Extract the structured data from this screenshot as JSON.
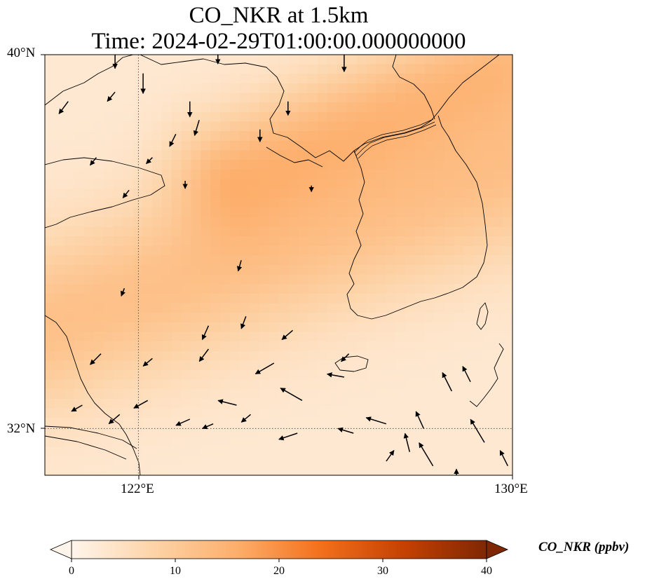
{
  "title": "CO_NKR at 1.5km",
  "subtitle": "Time: 2024-02-29T01:00:00.000000000",
  "lat_ticks": [
    "40°N",
    "32°N"
  ],
  "lon_ticks": [
    "122°E",
    "130°E"
  ],
  "colorbar": {
    "label": "CO_NKR (ppbv)",
    "ticks": [
      "0",
      "10",
      "20",
      "30",
      "40"
    ],
    "colors": [
      "#fff5eb",
      "#fdd3a7",
      "#fdae6b",
      "#f3701b",
      "#c54102",
      "#7f2704"
    ]
  },
  "chart_data": {
    "type": "heatmap",
    "title": "CO_NKR at 1.5km",
    "variable": "CO_NKR",
    "units": "ppbv",
    "lon_range": [
      120,
      130
    ],
    "lat_range": [
      31,
      40
    ],
    "color_range": [
      0,
      40
    ],
    "gridlines": {
      "lon": [
        122
      ],
      "lat": [
        32
      ]
    },
    "value_field": {
      "background": 3,
      "bands": [
        {
          "name": "central-plume",
          "lon0": 120,
          "lat0": 34.2,
          "lon1": 130,
          "lat1": 37.6,
          "width": 1.3,
          "peak": 9
        },
        {
          "name": "northeast-plume",
          "lon0": 124,
          "lat0": 37.5,
          "lon1": 130,
          "lat1": 40.0,
          "width": 0.9,
          "peak": 9
        }
      ]
    }
  },
  "wind_vectors": [
    [
      121.5,
      40.1,
      0,
      -1.2
    ],
    [
      122.1,
      39.6,
      0,
      -1.3
    ],
    [
      123.7,
      40.2,
      0,
      -1.2
    ],
    [
      126.4,
      40.0,
      0,
      -1.1
    ],
    [
      120.5,
      39.0,
      -0.6,
      -0.8
    ],
    [
      121.5,
      39.2,
      -0.5,
      -0.6
    ],
    [
      123.1,
      39.0,
      0,
      -1.0
    ],
    [
      125.2,
      39.0,
      0,
      -0.9
    ],
    [
      124.6,
      38.4,
      0,
      -0.8
    ],
    [
      123.3,
      38.6,
      -0.3,
      -1.0
    ],
    [
      122.8,
      38.3,
      -0.4,
      -0.8
    ],
    [
      121.1,
      37.8,
      -0.4,
      -0.5
    ],
    [
      122.3,
      37.8,
      -0.4,
      -0.4
    ],
    [
      121.8,
      37.1,
      -0.4,
      -0.5
    ],
    [
      123.0,
      37.3,
      0,
      -0.5
    ],
    [
      125.7,
      37.2,
      0,
      -0.4
    ],
    [
      124.2,
      35.6,
      -0.2,
      -0.7
    ],
    [
      121.7,
      35.0,
      -0.2,
      -0.5
    ],
    [
      123.5,
      34.2,
      -0.4,
      -0.9
    ],
    [
      124.3,
      34.4,
      -0.3,
      -0.8
    ],
    [
      125.3,
      34.1,
      -0.7,
      -0.6
    ],
    [
      126.5,
      33.6,
      -0.5,
      -0.5
    ],
    [
      124.9,
      33.4,
      -1.2,
      -0.7
    ],
    [
      123.5,
      33.7,
      -0.6,
      -0.8
    ],
    [
      122.3,
      33.5,
      -0.6,
      -0.5
    ],
    [
      121.2,
      33.6,
      -0.7,
      -0.7
    ],
    [
      120.8,
      32.5,
      -0.7,
      -0.4
    ],
    [
      121.6,
      32.3,
      -0.7,
      -0.6
    ],
    [
      122.2,
      32.6,
      -0.9,
      -0.5
    ],
    [
      123.1,
      32.2,
      -0.9,
      -0.4
    ],
    [
      124.4,
      32.3,
      -0.6,
      -0.5
    ],
    [
      125.4,
      31.9,
      -1.2,
      -0.4
    ],
    [
      123.6,
      32.1,
      -0.7,
      -0.3
    ],
    [
      127.3,
      32.1,
      -1.3,
      0.4
    ],
    [
      127.3,
      31.3,
      0.5,
      0.7
    ],
    [
      128.3,
      31.2,
      -0.9,
      1.5
    ],
    [
      128.1,
      32.0,
      -0.5,
      1.1
    ],
    [
      129.4,
      31.7,
      -0.9,
      1.5
    ],
    [
      126.6,
      31.9,
      -1.0,
      0.3
    ],
    [
      125.5,
      32.6,
      -1.4,
      0.8
    ],
    [
      124.1,
      32.5,
      -1.2,
      0.3
    ],
    [
      127.8,
      31.5,
      -0.3,
      1.2
    ],
    [
      128.7,
      32.8,
      -0.6,
      1.2
    ],
    [
      129.1,
      33.0,
      -0.5,
      1.0
    ],
    [
      126.4,
      33.1,
      -1.1,
      0.2
    ],
    [
      129.9,
      31.2,
      -0.5,
      1.0
    ],
    [
      125.5,
      30.6,
      -0.4,
      -0.2
    ],
    [
      126.1,
      30.5,
      -0.3,
      -0.2
    ],
    [
      128.8,
      30.8,
      0,
      1.0
    ],
    [
      127.0,
      30.4,
      0.3,
      0.3
    ],
    [
      122.6,
      30.3,
      0,
      -0.4
    ],
    [
      123.2,
      30.5,
      0,
      -0.3
    ],
    [
      124.0,
      30.3,
      0,
      -0.3
    ],
    [
      120.7,
      30.8,
      -0.3,
      -0.2
    ],
    [
      121.9,
      30.0,
      0,
      -0.3
    ],
    [
      124.6,
      30.9,
      -0.4,
      -0.2
    ]
  ]
}
